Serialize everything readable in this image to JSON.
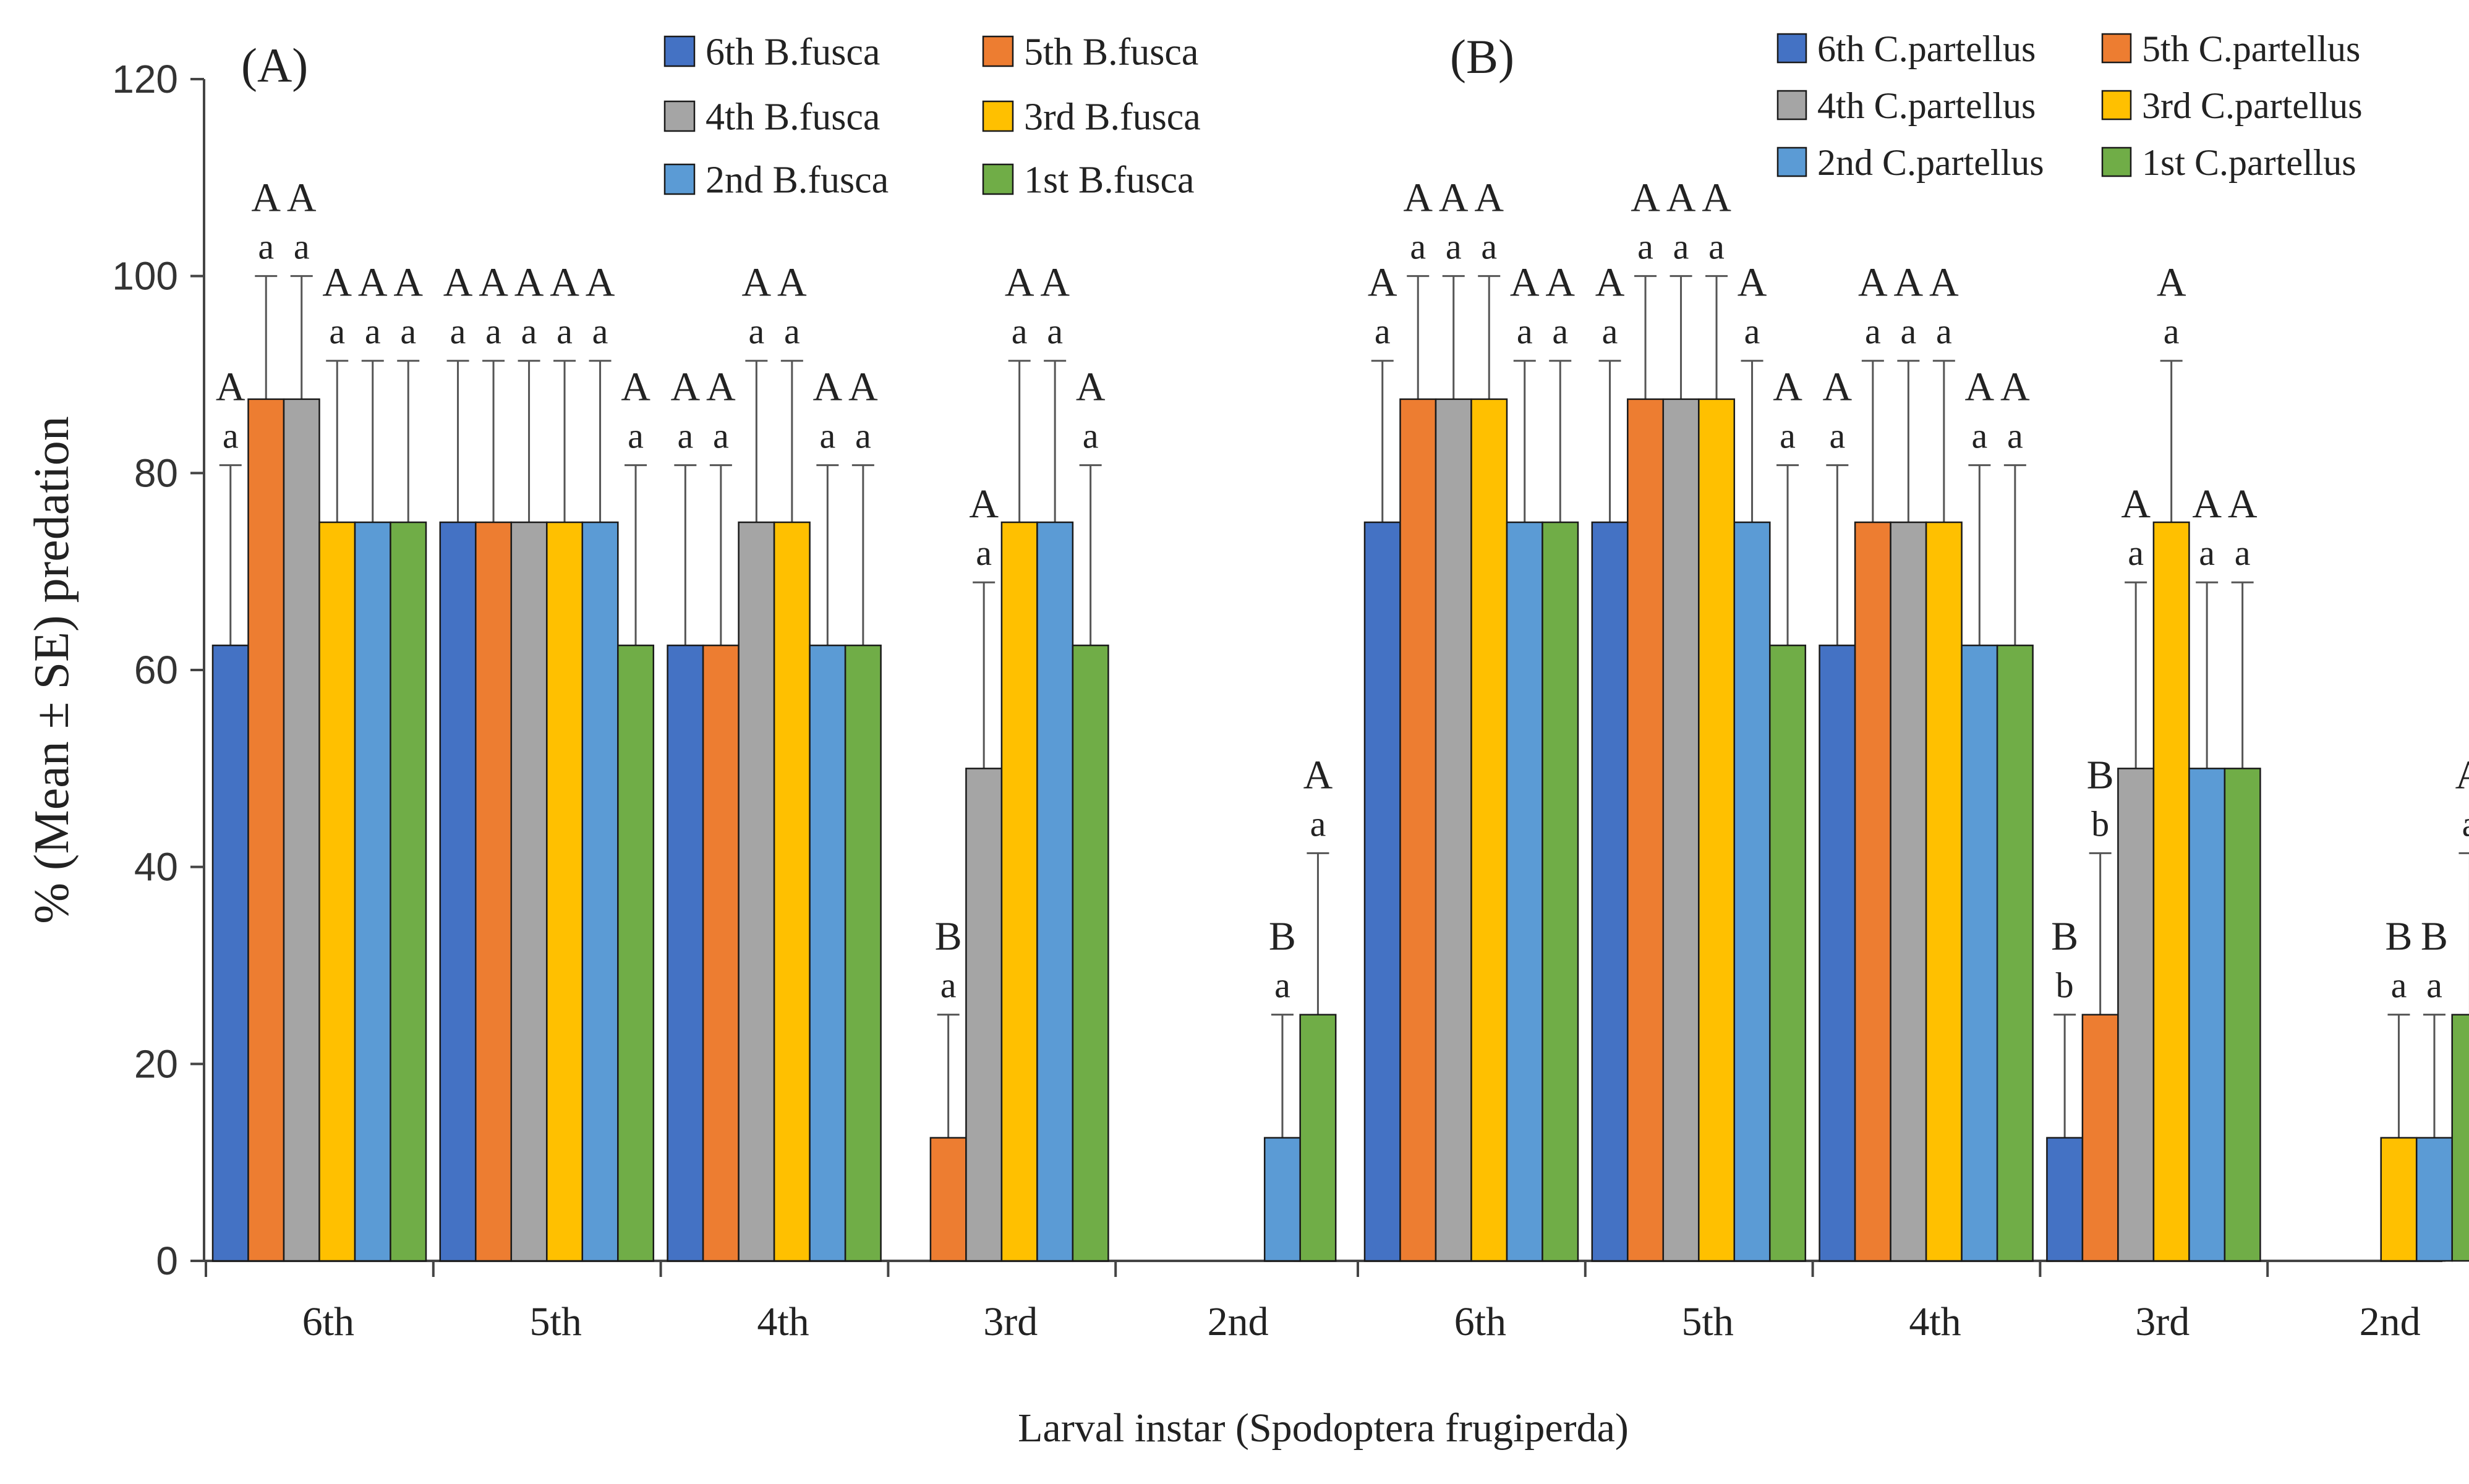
{
  "chart_data": {
    "type": "bar",
    "ylabel": "% (Mean ± SE) predation",
    "xlabel": "Larval instar (Spodoptera frugiperda)",
    "ylim": [
      0,
      120
    ],
    "yticks": [
      "0",
      "20",
      "40",
      "60",
      "80",
      "100",
      "120"
    ],
    "colors": [
      "#4472C4",
      "#ED7D31",
      "#A5A5A5",
      "#FFC000",
      "#5B9BD5",
      "#70AD47"
    ],
    "legend_position": "top-right",
    "panels": [
      {
        "label": "(A)",
        "categories": [
          "6th",
          "5th",
          "4th",
          "3rd",
          "2nd"
        ],
        "series": [
          {
            "name": "6th B.fusca",
            "values": [
              62.5,
              75,
              62.5,
              0,
              0
            ],
            "errors": [
              18.3,
              16.4,
              18.3,
              0,
              0
            ],
            "upper": [
              "A",
              "A",
              "A",
              "",
              ""
            ],
            "lower": [
              "a",
              "a",
              "a",
              "",
              ""
            ]
          },
          {
            "name": "5th B.fusca",
            "values": [
              87.5,
              75,
              62.5,
              12.5,
              0
            ],
            "errors": [
              12.5,
              16.4,
              18.3,
              12.5,
              0
            ],
            "upper": [
              "A",
              "A",
              "A",
              "B",
              ""
            ],
            "lower": [
              "a",
              "a",
              "a",
              "a",
              ""
            ]
          },
          {
            "name": "4th B.fusca",
            "values": [
              87.5,
              75,
              75,
              50,
              0
            ],
            "errors": [
              12.5,
              16.4,
              16.4,
              18.9,
              0
            ],
            "upper": [
              "A",
              "A",
              "A",
              "A",
              ""
            ],
            "lower": [
              "a",
              "a",
              "a",
              "a",
              ""
            ]
          },
          {
            "name": "3rd B.fusca",
            "values": [
              75,
              75,
              75,
              75,
              0
            ],
            "errors": [
              16.4,
              16.4,
              16.4,
              16.4,
              0
            ],
            "upper": [
              "A",
              "A",
              "A",
              "A",
              ""
            ],
            "lower": [
              "a",
              "a",
              "a",
              "a",
              ""
            ]
          },
          {
            "name": "2nd B.fusca",
            "values": [
              75,
              75,
              62.5,
              75,
              12.5
            ],
            "errors": [
              16.4,
              16.4,
              18.3,
              16.4,
              12.5
            ],
            "upper": [
              "A",
              "A",
              "A",
              "A",
              "B"
            ],
            "lower": [
              "a",
              "a",
              "a",
              "a",
              "a"
            ]
          },
          {
            "name": "1st B.fusca",
            "values": [
              75,
              62.5,
              62.5,
              62.5,
              25
            ],
            "errors": [
              16.4,
              18.3,
              18.3,
              18.3,
              16.4
            ],
            "upper": [
              "A",
              "A",
              "A",
              "A",
              "A"
            ],
            "lower": [
              "a",
              "a",
              "a",
              "a",
              "a"
            ]
          }
        ]
      },
      {
        "label": "(B)",
        "categories": [
          "6th",
          "5th",
          "4th",
          "3rd",
          "2nd"
        ],
        "series": [
          {
            "name": "6th C.partellus",
            "values": [
              75,
              75,
              62.5,
              12.5,
              0
            ],
            "errors": [
              16.4,
              16.4,
              18.3,
              12.5,
              0
            ],
            "upper": [
              "A",
              "A",
              "A",
              "B",
              ""
            ],
            "lower": [
              "a",
              "a",
              "a",
              "b",
              ""
            ]
          },
          {
            "name": "5th C.partellus",
            "values": [
              87.5,
              87.5,
              75,
              25,
              0
            ],
            "errors": [
              12.5,
              12.5,
              16.4,
              16.4,
              0
            ],
            "upper": [
              "A",
              "A",
              "A",
              "B",
              ""
            ],
            "lower": [
              "a",
              "a",
              "a",
              "b",
              ""
            ]
          },
          {
            "name": "4th C.partellus",
            "values": [
              87.5,
              87.5,
              75,
              50,
              0
            ],
            "errors": [
              12.5,
              12.5,
              16.4,
              18.9,
              0
            ],
            "upper": [
              "A",
              "A",
              "A",
              "A",
              ""
            ],
            "lower": [
              "a",
              "a",
              "a",
              "a",
              ""
            ]
          },
          {
            "name": "3rd C.partellus",
            "values": [
              87.5,
              87.5,
              75,
              75,
              12.5
            ],
            "errors": [
              12.5,
              12.5,
              16.4,
              16.4,
              12.5
            ],
            "upper": [
              "A",
              "A",
              "A",
              "A",
              "B"
            ],
            "lower": [
              "a",
              "a",
              "a",
              "a",
              "a"
            ]
          },
          {
            "name": "2nd C.partellus",
            "values": [
              75,
              75,
              62.5,
              50,
              12.5
            ],
            "errors": [
              16.4,
              16.4,
              18.3,
              18.9,
              12.5
            ],
            "upper": [
              "A",
              "A",
              "A",
              "A",
              "B"
            ],
            "lower": [
              "a",
              "a",
              "a",
              "a",
              "a"
            ]
          },
          {
            "name": "1st C.partellus",
            "values": [
              75,
              62.5,
              62.5,
              50,
              25
            ],
            "errors": [
              16.4,
              18.3,
              18.3,
              18.9,
              16.4
            ],
            "upper": [
              "A",
              "A",
              "A",
              "A",
              "A"
            ],
            "lower": [
              "a",
              "a",
              "a",
              "a",
              "a"
            ]
          }
        ]
      }
    ]
  }
}
